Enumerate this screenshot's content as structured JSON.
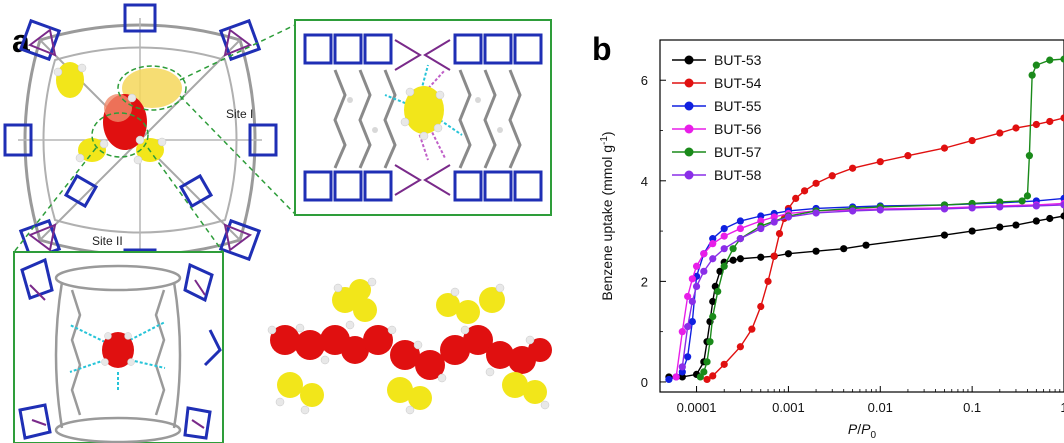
{
  "panels": {
    "a": {
      "letter": "a",
      "site_i_label": "Site I",
      "site_ii_label": "Site II"
    },
    "b": {
      "letter": "b"
    }
  },
  "colors": {
    "framework_blue": "#1f2fb5",
    "framework_purple": "#7a2a8a",
    "framework_grey": "#9a9a9a",
    "benzene_yellow": "#f2e61a",
    "benzene_red": "#e01010",
    "hbond_cyan": "#27c4d8",
    "inset_border": "#2e9d3a"
  },
  "chart_data": {
    "type": "line",
    "xlabel_main": "P",
    "xlabel_sep": "/",
    "xlabel_sub_main": "P",
    "xlabel_sub": "0",
    "ylabel": "Benzene uptake (mmol g",
    "ylabel_sup": "-1",
    "ylabel_close": ")",
    "xscale": "log",
    "xlim": [
      4e-05,
      1.0
    ],
    "ylim": [
      -0.2,
      6.8
    ],
    "xticks": [
      0.0001,
      0.001,
      0.01,
      0.1,
      1
    ],
    "xtick_labels": [
      "0.0001",
      "0.001",
      "0.01",
      "0.1",
      "1"
    ],
    "yticks": [
      0,
      2,
      4,
      6
    ],
    "ytick_labels": [
      "0",
      "2",
      "4",
      "6"
    ],
    "legend_position": "top-left",
    "series": [
      {
        "name": "BUT-53",
        "color": "#000000",
        "x": [
          5e-05,
          7e-05,
          0.0001,
          0.00012,
          0.00013,
          0.00014,
          0.00015,
          0.00016,
          0.00018,
          0.0002,
          0.00025,
          0.0003,
          0.0005,
          0.0007,
          0.001,
          0.002,
          0.004,
          0.007,
          0.05,
          0.1,
          0.2,
          0.3,
          0.5,
          0.7,
          1.0
        ],
        "y": [
          0.1,
          0.1,
          0.15,
          0.4,
          0.8,
          1.2,
          1.6,
          1.9,
          2.2,
          2.38,
          2.42,
          2.45,
          2.48,
          2.5,
          2.55,
          2.6,
          2.65,
          2.72,
          2.92,
          3.0,
          3.08,
          3.12,
          3.2,
          3.25,
          3.3
        ]
      },
      {
        "name": "BUT-54",
        "color": "#e01010",
        "x": [
          0.00013,
          0.00015,
          0.0002,
          0.0003,
          0.0004,
          0.0005,
          0.0006,
          0.0007,
          0.0008,
          0.0009,
          0.001,
          0.0012,
          0.0015,
          0.002,
          0.003,
          0.005,
          0.01,
          0.02,
          0.05,
          0.1,
          0.2,
          0.3,
          0.5,
          0.7,
          1.0
        ],
        "y": [
          0.05,
          0.12,
          0.35,
          0.7,
          1.05,
          1.5,
          2.0,
          2.5,
          2.95,
          3.25,
          3.45,
          3.65,
          3.8,
          3.95,
          4.1,
          4.25,
          4.38,
          4.5,
          4.65,
          4.8,
          4.95,
          5.05,
          5.12,
          5.18,
          5.25
        ]
      },
      {
        "name": "BUT-55",
        "color": "#1020e0",
        "x": [
          5e-05,
          6e-05,
          7e-05,
          8e-05,
          9e-05,
          0.0001,
          0.00012,
          0.00015,
          0.0002,
          0.0003,
          0.0005,
          0.0007,
          0.001,
          0.002,
          0.005,
          0.01,
          0.05,
          0.1,
          0.2,
          0.5,
          1.0
        ],
        "y": [
          0.05,
          0.1,
          0.2,
          0.5,
          1.2,
          2.1,
          2.55,
          2.85,
          3.05,
          3.2,
          3.3,
          3.35,
          3.4,
          3.45,
          3.48,
          3.5,
          3.52,
          3.54,
          3.56,
          3.6,
          3.65
        ]
      },
      {
        "name": "BUT-56",
        "color": "#e81ee8",
        "x": [
          6e-05,
          7e-05,
          8e-05,
          9e-05,
          0.0001,
          0.00012,
          0.00015,
          0.0002,
          0.0003,
          0.0005,
          0.0007,
          0.001,
          0.002,
          0.005,
          0.01,
          0.05,
          0.1,
          0.2,
          0.5,
          1.0
        ],
        "y": [
          0.1,
          1.0,
          1.7,
          2.05,
          2.3,
          2.55,
          2.75,
          2.9,
          3.05,
          3.2,
          3.28,
          3.35,
          3.4,
          3.42,
          3.44,
          3.46,
          3.48,
          3.5,
          3.52,
          3.55
        ]
      },
      {
        "name": "BUT-57",
        "color": "#1a8a1a",
        "x": [
          0.00011,
          0.00012,
          0.00013,
          0.00014,
          0.00015,
          0.00017,
          0.0002,
          0.00025,
          0.0003,
          0.0005,
          0.001,
          0.002,
          0.005,
          0.01,
          0.05,
          0.1,
          0.2,
          0.35,
          0.4,
          0.42,
          0.45,
          0.5,
          0.7,
          1.0
        ],
        "y": [
          0.1,
          0.2,
          0.4,
          0.8,
          1.3,
          1.8,
          2.3,
          2.65,
          2.85,
          3.1,
          3.3,
          3.4,
          3.45,
          3.48,
          3.52,
          3.55,
          3.58,
          3.6,
          3.7,
          4.5,
          6.1,
          6.3,
          6.4,
          6.42
        ]
      },
      {
        "name": "BUT-58",
        "color": "#8a2ee8",
        "x": [
          7e-05,
          8e-05,
          9e-05,
          0.0001,
          0.00012,
          0.00015,
          0.0002,
          0.0003,
          0.0005,
          0.0007,
          0.001,
          0.002,
          0.005,
          0.01,
          0.05,
          0.1,
          0.2,
          0.5,
          1.0
        ],
        "y": [
          0.3,
          1.1,
          1.6,
          1.9,
          2.2,
          2.45,
          2.65,
          2.85,
          3.05,
          3.18,
          3.28,
          3.36,
          3.4,
          3.42,
          3.44,
          3.46,
          3.48,
          3.5,
          3.52
        ]
      }
    ]
  }
}
